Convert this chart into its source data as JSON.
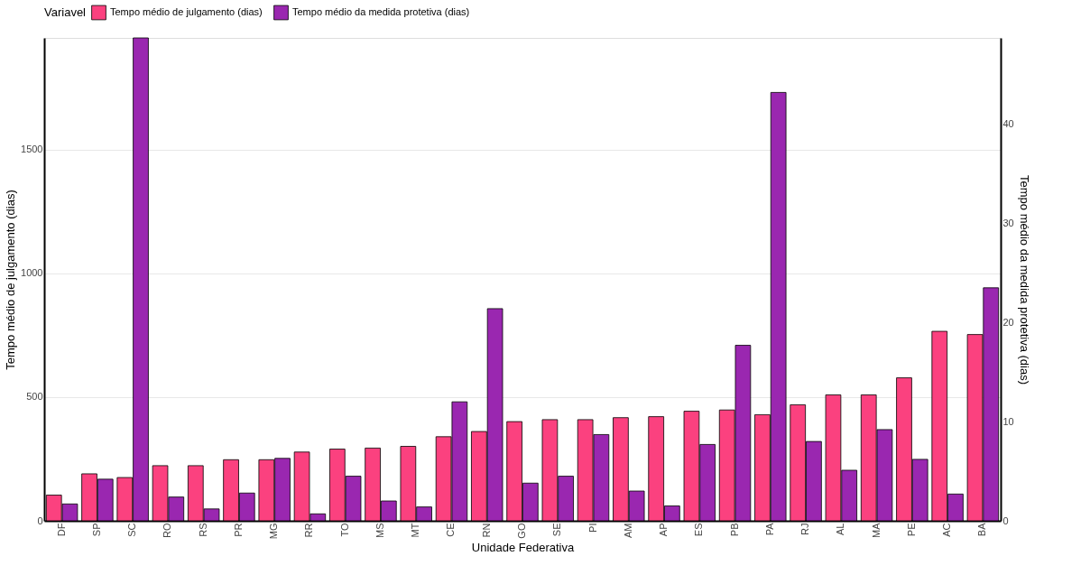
{
  "chart_data": {
    "type": "bar",
    "xlabel": "Unidade Federativa",
    "ylabel": "Tempo médio de julgamento (dias)",
    "y2label": "Tempo médio da medida protetiva (dias)",
    "legend_title": "Variavel",
    "categories": [
      "DF",
      "SP",
      "SC",
      "RO",
      "RS",
      "PR",
      "MG",
      "RR",
      "TO",
      "MS",
      "MT",
      "CE",
      "RN",
      "GO",
      "SE",
      "PI",
      "AM",
      "AP",
      "ES",
      "PB",
      "PA",
      "RJ",
      "AL",
      "MA",
      "PE",
      "AC",
      "BA"
    ],
    "series": [
      {
        "name": "Tempo médio de julgamento (dias)",
        "color": "#fb417f",
        "values": [
          104,
          190,
          175,
          223,
          223,
          247,
          247,
          278,
          290,
          294,
          301,
          340,
          361,
          401,
          409,
          409,
          417,
          421,
          443,
          448,
          429,
          469,
          509,
          509,
          578,
          766,
          753
        ]
      },
      {
        "name": "Tempo médio da medida protetiva (dias)",
        "color": "#9a27b0",
        "axis": "y2",
        "values": [
          1.7,
          4.2,
          48.7,
          2.4,
          1.2,
          2.8,
          6.3,
          0.7,
          4.5,
          2.0,
          1.4,
          12.0,
          21.4,
          3.8,
          4.5,
          8.7,
          3.0,
          1.5,
          7.7,
          17.7,
          43.2,
          8.0,
          5.1,
          9.2,
          6.2,
          2.7,
          23.5
        ]
      }
    ],
    "ylim": [
      0,
      1952
    ],
    "yticks": [
      0,
      500,
      1000,
      1500
    ],
    "y2lim": [
      0,
      48.7
    ],
    "y2ticks": [
      0,
      10,
      20,
      30,
      40
    ],
    "grid": "y",
    "legend": "top"
  }
}
